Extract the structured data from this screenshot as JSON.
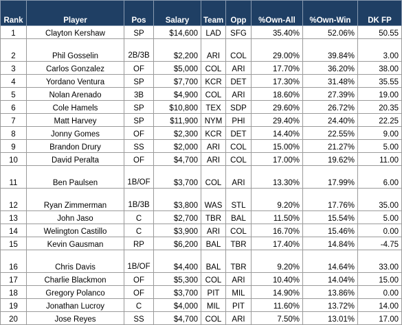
{
  "headers": [
    {
      "key": "rank",
      "label": "Rank"
    },
    {
      "key": "player",
      "label": "Player"
    },
    {
      "key": "pos",
      "label": "Pos"
    },
    {
      "key": "salary",
      "label": "Salary"
    },
    {
      "key": "team",
      "label": "Team"
    },
    {
      "key": "opp",
      "label": "Opp"
    },
    {
      "key": "own_all",
      "label": "%Own-All"
    },
    {
      "key": "own_win",
      "label": "%Own-Win"
    },
    {
      "key": "dk_fp",
      "label": "DK FP"
    }
  ],
  "rows": [
    [
      "1",
      "Clayton Kershaw",
      "SP",
      "$14,600",
      "LAD",
      "SFG",
      "35.40%",
      "52.06%",
      "50.55"
    ],
    [
      "2",
      "Phil Gosselin",
      "2B/3B",
      "$2,200",
      "ARI",
      "COL",
      "29.00%",
      "39.84%",
      "3.00"
    ],
    [
      "3",
      "Carlos Gonzalez",
      "OF",
      "$5,000",
      "COL",
      "ARI",
      "17.70%",
      "36.20%",
      "38.00"
    ],
    [
      "4",
      "Yordano Ventura",
      "SP",
      "$7,700",
      "KCR",
      "DET",
      "17.30%",
      "31.48%",
      "35.55"
    ],
    [
      "5",
      "Nolan Arenado",
      "3B",
      "$4,900",
      "COL",
      "ARI",
      "18.60%",
      "27.39%",
      "19.00"
    ],
    [
      "6",
      "Cole Hamels",
      "SP",
      "$10,800",
      "TEX",
      "SDP",
      "29.60%",
      "26.72%",
      "20.35"
    ],
    [
      "7",
      "Matt Harvey",
      "SP",
      "$11,900",
      "NYM",
      "PHI",
      "29.40%",
      "24.40%",
      "22.25"
    ],
    [
      "8",
      "Jonny Gomes",
      "OF",
      "$2,300",
      "KCR",
      "DET",
      "14.40%",
      "22.55%",
      "9.00"
    ],
    [
      "9",
      "Brandon Drury",
      "SS",
      "$2,000",
      "ARI",
      "COL",
      "15.00%",
      "21.27%",
      "5.00"
    ],
    [
      "10",
      "David Peralta",
      "OF",
      "$4,700",
      "ARI",
      "COL",
      "17.00%",
      "19.62%",
      "11.00"
    ],
    [
      "11",
      "Ben Paulsen",
      "1B/OF",
      "$3,700",
      "COL",
      "ARI",
      "13.30%",
      "17.99%",
      "6.00"
    ],
    [
      "12",
      "Ryan Zimmerman",
      "1B/3B",
      "$3,800",
      "WAS",
      "STL",
      "9.20%",
      "17.76%",
      "35.00"
    ],
    [
      "13",
      "John Jaso",
      "C",
      "$2,700",
      "TBR",
      "BAL",
      "11.50%",
      "15.54%",
      "5.00"
    ],
    [
      "14",
      "Welington Castillo",
      "C",
      "$3,900",
      "ARI",
      "COL",
      "16.70%",
      "15.46%",
      "0.00"
    ],
    [
      "15",
      "Kevin Gausman",
      "RP",
      "$6,200",
      "BAL",
      "TBR",
      "17.40%",
      "14.84%",
      "-4.75"
    ],
    [
      "16",
      "Chris Davis",
      "1B/OF",
      "$4,400",
      "BAL",
      "TBR",
      "9.20%",
      "14.64%",
      "33.00"
    ],
    [
      "17",
      "Charlie Blackmon",
      "OF",
      "$5,300",
      "COL",
      "ARI",
      "10.40%",
      "14.04%",
      "15.00"
    ],
    [
      "18",
      "Gregory Polanco",
      "OF",
      "$3,700",
      "PIT",
      "MIL",
      "14.90%",
      "13.86%",
      "0.00"
    ],
    [
      "19",
      "Jonathan Lucroy",
      "C",
      "$4,000",
      "MIL",
      "PIT",
      "11.60%",
      "13.72%",
      "14.00"
    ],
    [
      "20",
      "Jose Reyes",
      "SS",
      "$4,700",
      "COL",
      "ARI",
      "7.50%",
      "13.01%",
      "17.00"
    ]
  ]
}
